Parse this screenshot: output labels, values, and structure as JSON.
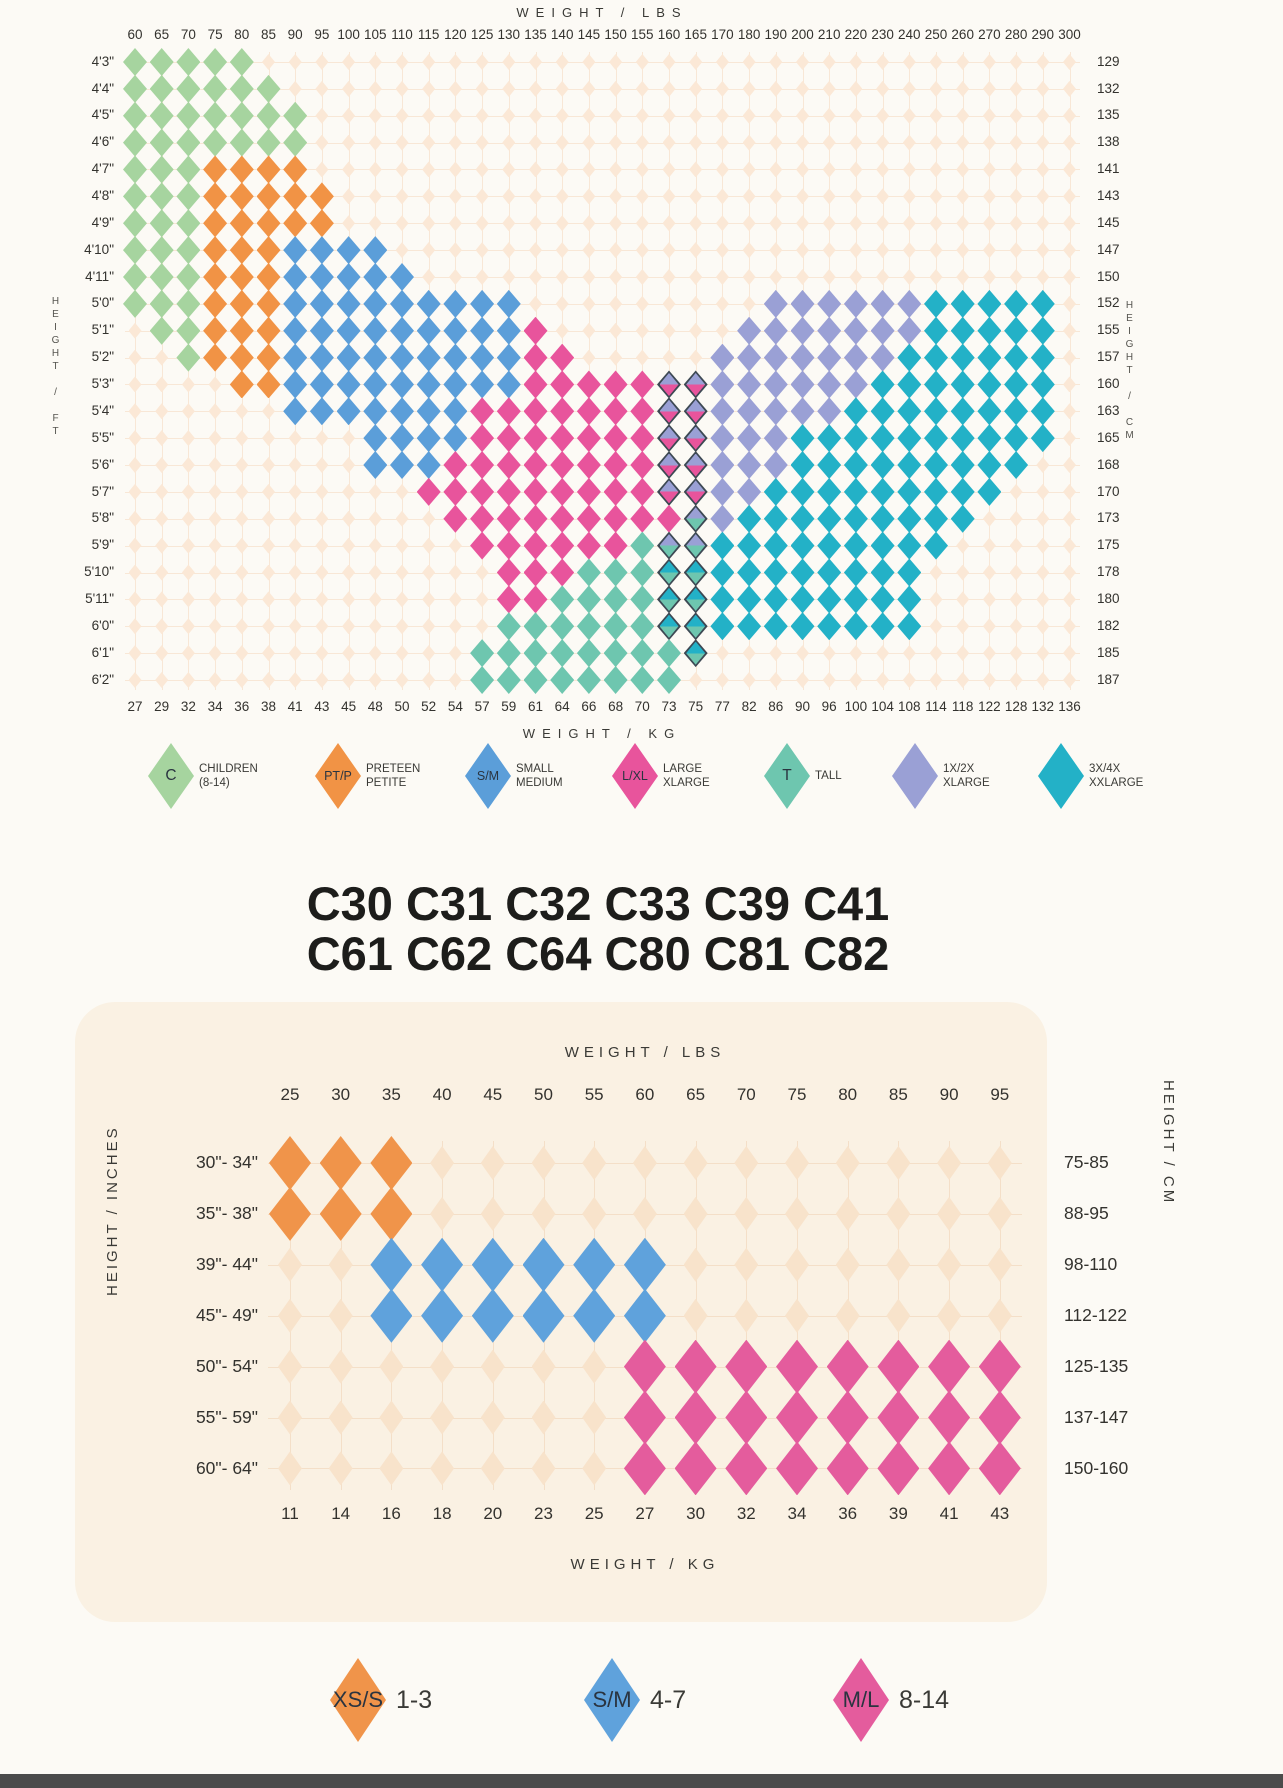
{
  "palette": {
    "colors": {
      "C": "#a6d49f",
      "P": "#f19345",
      "S": "#5b9ed9",
      "L": "#e8549c",
      "T": "#6ec6af",
      "X": "#9aa0d5",
      "Z": "#23b1c7",
      "O": "#f0944a",
      "B": "#5fa2dc",
      "M": "#e45c9d"
    },
    "splits": {
      "a": [
        "#9aa0d5",
        "#e8549c"
      ],
      "b": [
        "#9aa0d5",
        "#6ec6af"
      ],
      "c": [
        "#23b1c7",
        "#6ec6af"
      ]
    },
    "split_outline": "#3d4954",
    "cream_top": "#fbe8d6",
    "line_top": "#f8e7d6",
    "cream_bottom": "#f8e3cb",
    "line_bottom": "#f4dfc8",
    "bottom_bar": "#4b4b4b"
  },
  "middle_title": {
    "line1": "C30 C31 C32 C33 C39 C41",
    "line2": "C61 C62 C64 C80 C81 C82"
  },
  "chart_data": [
    {
      "type": "heatmap",
      "title_top": "WEIGHT / LBS",
      "title_bottom": "WEIGHT / KG",
      "left_axis": "HEIGHT / FT",
      "right_axis": "HEIGHT / CM",
      "x_labels": [
        "60",
        "65",
        "70",
        "75",
        "80",
        "85",
        "90",
        "95",
        "100",
        "105",
        "110",
        "115",
        "120",
        "125",
        "130",
        "135",
        "140",
        "145",
        "150",
        "155",
        "160",
        "165",
        "170",
        "180",
        "190",
        "200",
        "210",
        "220",
        "230",
        "240",
        "250",
        "260",
        "270",
        "280",
        "290",
        "300"
      ],
      "x_labels_bottom": [
        "27",
        "29",
        "32",
        "34",
        "36",
        "38",
        "41",
        "43",
        "45",
        "48",
        "50",
        "52",
        "54",
        "57",
        "59",
        "61",
        "64",
        "66",
        "68",
        "70",
        "73",
        "75",
        "77",
        "82",
        "86",
        "90",
        "96",
        "100",
        "104",
        "108",
        "114",
        "118",
        "122",
        "128",
        "132",
        "136"
      ],
      "rows": [
        {
          "ft": "4'3\"",
          "cm": "129",
          "cells": "CCCCC..............................."
        },
        {
          "ft": "4'4\"",
          "cm": "132",
          "cells": "CCCCCC.............................."
        },
        {
          "ft": "4'5\"",
          "cm": "135",
          "cells": "CCCCCCC............................."
        },
        {
          "ft": "4'6\"",
          "cm": "138",
          "cells": "CCCCCCC............................."
        },
        {
          "ft": "4'7\"",
          "cm": "141",
          "cells": "CCCPPPP............................."
        },
        {
          "ft": "4'8\"",
          "cm": "143",
          "cells": "CCCPPPPP............................"
        },
        {
          "ft": "4'9\"",
          "cm": "145",
          "cells": "CCCPPPPP............................"
        },
        {
          "ft": "4'10\"",
          "cm": "147",
          "cells": "CCCPPPSSSS.........................."
        },
        {
          "ft": "4'11\"",
          "cm": "150",
          "cells": "CCCPPPSSSSS........................."
        },
        {
          "ft": "5'0\"",
          "cm": "152",
          "cells": "CCCPPPSSSSSSSSS.........XXXXXXZZZZZ."
        },
        {
          "ft": "5'1\"",
          "cm": "155",
          "cells": ".CCPPPSSSSSSSSSL.......XXXXXXXZZZZZ."
        },
        {
          "ft": "5'2\"",
          "cm": "157",
          "cells": "..CPPPSSSSSSSSSLL.....XXXXXXXZZZZZZ."
        },
        {
          "ft": "5'3\"",
          "cm": "160",
          "cells": "....PPSSSSSSSSSLLLLLaaXXXXXXZZZZZZZ."
        },
        {
          "ft": "5'4\"",
          "cm": "163",
          "cells": "......SSSSSSSLLLLLLLaaXXXXXZZZZZZZZ."
        },
        {
          "ft": "5'5\"",
          "cm": "165",
          "cells": ".........SSSSLLLLLLLaaXXXZZZZZZZZZZ."
        },
        {
          "ft": "5'6\"",
          "cm": "168",
          "cells": ".........SSSLLLLLLLLaaXXXZZZZZZZZZ.."
        },
        {
          "ft": "5'7\"",
          "cm": "170",
          "cells": "...........LLLLLLLLLaaXXZZZZZZZZZ..."
        },
        {
          "ft": "5'8\"",
          "cm": "173",
          "cells": "............LLLLLLLLLbXZZZZZZZZZ...."
        },
        {
          "ft": "5'9\"",
          "cm": "175",
          "cells": ".............LLLLLLTbbZZZZZZZZZ....."
        },
        {
          "ft": "5'10\"",
          "cm": "178",
          "cells": "..............LLLTTTccZZZZZZZZ......"
        },
        {
          "ft": "5'11\"",
          "cm": "180",
          "cells": "..............LLTTTTccZZZZZZZZ......"
        },
        {
          "ft": "6'0\"",
          "cm": "182",
          "cells": "..............TTTTTTccZZZZZZZZ......"
        },
        {
          "ft": "6'1\"",
          "cm": "185",
          "cells": ".............TTTTTTTTc.............."
        },
        {
          "ft": "6'2\"",
          "cm": "187",
          "cells": ".............TTTTTTTT..............."
        }
      ],
      "legend": [
        {
          "letter": "C",
          "color": "C",
          "lines": [
            "CHILDREN",
            "(8-14)"
          ]
        },
        {
          "letter": "PT/P",
          "color": "P",
          "lines": [
            "PRETEEN",
            "PETITE"
          ]
        },
        {
          "letter": "S/M",
          "color": "S",
          "lines": [
            "SMALL",
            "MEDIUM"
          ]
        },
        {
          "letter": "L/XL",
          "color": "L",
          "lines": [
            "LARGE",
            "XLARGE"
          ]
        },
        {
          "letter": "T",
          "color": "T",
          "lines": [
            "TALL"
          ]
        },
        {
          "letter": "",
          "color": "X",
          "lines": [
            "1X/2X",
            "XLARGE"
          ]
        },
        {
          "letter": "",
          "color": "Z",
          "lines": [
            "3X/4X",
            "XXLARGE"
          ]
        }
      ]
    },
    {
      "type": "heatmap",
      "title_top": "WEIGHT / LBS",
      "title_bottom": "WEIGHT / KG",
      "left_axis": "HEIGHT / INCHES",
      "right_axis": "HEIGHT / CM",
      "x_labels": [
        "25",
        "30",
        "35",
        "40",
        "45",
        "50",
        "55",
        "60",
        "65",
        "70",
        "75",
        "80",
        "85",
        "90",
        "95"
      ],
      "x_labels_bottom": [
        "11",
        "14",
        "16",
        "18",
        "20",
        "23",
        "25",
        "27",
        "30",
        "32",
        "34",
        "36",
        "39",
        "41",
        "43"
      ],
      "rows": [
        {
          "inches": "30\"- 34\"",
          "cm": "75-85",
          "cells": "OOO............"
        },
        {
          "inches": "35\"- 38\"",
          "cm": "88-95",
          "cells": "OOO............"
        },
        {
          "inches": "39\"- 44\"",
          "cm": "98-110",
          "cells": "..BBBBBB......."
        },
        {
          "inches": "45\"- 49\"",
          "cm": "112-122",
          "cells": "..BBBBBB......."
        },
        {
          "inches": "50\"- 54\"",
          "cm": "125-135",
          "cells": ".......MMMMMMMM"
        },
        {
          "inches": "55\"- 59\"",
          "cm": "137-147",
          "cells": ".......MMMMMMMM"
        },
        {
          "inches": "60\"- 64\"",
          "cm": "150-160",
          "cells": ".......MMMMMMMM"
        }
      ],
      "legend": [
        {
          "letter": "XS/S",
          "color": "O",
          "label": "1-3"
        },
        {
          "letter": "S/M",
          "color": "B",
          "label": "4-7"
        },
        {
          "letter": "M/L",
          "color": "M",
          "label": "8-14"
        }
      ]
    }
  ]
}
